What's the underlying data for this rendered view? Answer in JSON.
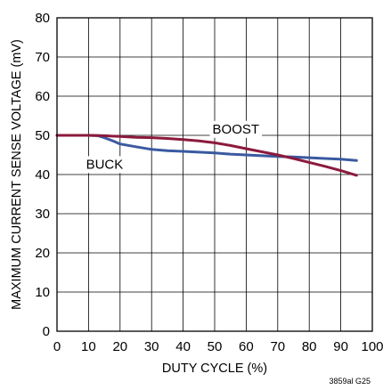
{
  "chart_data": {
    "type": "line",
    "title": "",
    "xlabel": "DUTY CYCLE (%)",
    "ylabel": "MAXIMUM CURRENT SENSE VOLTAGE (mV)",
    "xlim": [
      0,
      100
    ],
    "ylim": [
      0,
      80
    ],
    "x_ticks": [
      0,
      10,
      20,
      30,
      40,
      50,
      60,
      70,
      80,
      90,
      100
    ],
    "y_ticks": [
      0,
      10,
      20,
      30,
      40,
      50,
      60,
      70,
      80
    ],
    "grid": true,
    "legend": "inline labels",
    "series": [
      {
        "name": "BUCK",
        "color": "#3a5aa0",
        "x": [
          0,
          5,
          10,
          13,
          15,
          18,
          20,
          25,
          30,
          35,
          40,
          45,
          50,
          55,
          60,
          65,
          70,
          75,
          80,
          85,
          90,
          95
        ],
        "y": [
          50,
          50,
          50,
          49.9,
          49.4,
          48.5,
          47.8,
          47.1,
          46.4,
          46.1,
          45.9,
          45.7,
          45.5,
          45.2,
          45.0,
          44.8,
          44.6,
          44.5,
          44.3,
          44.1,
          43.9,
          43.6
        ]
      },
      {
        "name": "BOOST",
        "color": "#8b1a3c",
        "x": [
          0,
          5,
          10,
          15,
          20,
          25,
          30,
          35,
          40,
          45,
          50,
          55,
          60,
          65,
          70,
          75,
          80,
          85,
          90,
          95
        ],
        "y": [
          50,
          50,
          50,
          49.9,
          49.7,
          49.5,
          49.4,
          49.2,
          48.9,
          48.6,
          48.1,
          47.4,
          46.6,
          45.8,
          45.0,
          44.1,
          43.1,
          42.1,
          41.0,
          39.8
        ]
      }
    ],
    "figure_id": "3859al G25"
  }
}
